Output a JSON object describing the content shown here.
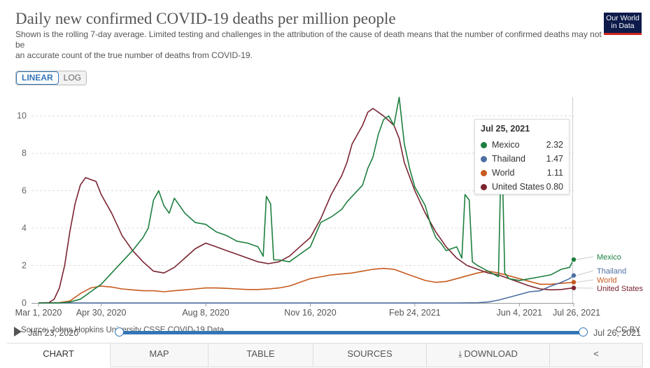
{
  "title": "Daily new confirmed COVID-19 deaths per million people",
  "subtitle_line1": "Shown is the rolling 7-day average. Limited testing and challenges in the attribution of the cause of death means that the number of confirmed deaths may not be",
  "subtitle_line2": "an accurate count of the true number of deaths from COVID-19.",
  "logo": {
    "line1": "Our World",
    "line2": "in Data"
  },
  "scale": {
    "linear": "LINEAR",
    "log": "LOG"
  },
  "tooltip": {
    "date": "Jul 25, 2021",
    "rows": [
      {
        "name": "Mexico",
        "value": "2.32",
        "color": "#1d7f3e"
      },
      {
        "name": "Thailand",
        "value": "1.47",
        "color": "#4e6fa3"
      },
      {
        "name": "World",
        "value": "1.11",
        "color": "#c75a1d"
      },
      {
        "name": "United States",
        "value": "0.80",
        "color": "#7a2430"
      }
    ]
  },
  "timeline": {
    "source": "Source: Johns Hopkins University CSSE COVID-19 Data",
    "license": "CC BY",
    "start": "Jan 23, 2020",
    "end": "Jul 26, 2021"
  },
  "tabs": {
    "chart": "CHART",
    "map": "MAP",
    "table": "TABLE",
    "sources": "SOURCES",
    "download": "DOWNLOAD",
    "share_icon": "share-icon",
    "download_icon": "download-icon"
  },
  "chart_data": {
    "type": "line",
    "title": "Daily new confirmed COVID-19 deaths per million people",
    "xlabel": "",
    "ylabel": "",
    "x_range_days": [
      0,
      512
    ],
    "ylim": [
      0,
      11
    ],
    "yticks": [
      0,
      2,
      4,
      6,
      8,
      10
    ],
    "xticks": [
      {
        "day": 0,
        "label": "Mar 1, 2020"
      },
      {
        "day": 60,
        "label": "Apr 30, 2020"
      },
      {
        "day": 160,
        "label": "Aug 8, 2020"
      },
      {
        "day": 260,
        "label": "Nov 16, 2020"
      },
      {
        "day": 360,
        "label": "Feb 24, 2021"
      },
      {
        "day": 460,
        "label": "Jun 4, 2021"
      },
      {
        "day": 512,
        "label": "Jul 26, 2021"
      }
    ],
    "grid": true,
    "series": [
      {
        "name": "Mexico",
        "color": "#1d7f3e",
        "points": [
          [
            0,
            0
          ],
          [
            20,
            0
          ],
          [
            30,
            0.05
          ],
          [
            40,
            0.2
          ],
          [
            50,
            0.6
          ],
          [
            60,
            1.0
          ],
          [
            70,
            1.6
          ],
          [
            80,
            2.2
          ],
          [
            90,
            2.8
          ],
          [
            100,
            3.5
          ],
          [
            105,
            4.0
          ],
          [
            110,
            5.5
          ],
          [
            115,
            6.0
          ],
          [
            120,
            5.2
          ],
          [
            125,
            4.8
          ],
          [
            130,
            5.6
          ],
          [
            140,
            4.8
          ],
          [
            150,
            4.3
          ],
          [
            160,
            4.2
          ],
          [
            170,
            3.8
          ],
          [
            180,
            3.6
          ],
          [
            190,
            3.3
          ],
          [
            200,
            3.2
          ],
          [
            210,
            3.0
          ],
          [
            215,
            2.5
          ],
          [
            218,
            5.7
          ],
          [
            222,
            5.3
          ],
          [
            225,
            2.3
          ],
          [
            230,
            2.3
          ],
          [
            240,
            2.2
          ],
          [
            250,
            2.6
          ],
          [
            260,
            3.0
          ],
          [
            270,
            4.3
          ],
          [
            280,
            4.6
          ],
          [
            290,
            5.0
          ],
          [
            295,
            5.4
          ],
          [
            300,
            5.7
          ],
          [
            310,
            6.3
          ],
          [
            315,
            7.2
          ],
          [
            320,
            7.8
          ],
          [
            325,
            9.0
          ],
          [
            330,
            9.8
          ],
          [
            335,
            10.0
          ],
          [
            340,
            9.5
          ],
          [
            345,
            11.0
          ],
          [
            350,
            8.5
          ],
          [
            355,
            7.2
          ],
          [
            360,
            6.2
          ],
          [
            370,
            5.2
          ],
          [
            375,
            4.2
          ],
          [
            380,
            3.5
          ],
          [
            385,
            3.2
          ],
          [
            390,
            2.8
          ],
          [
            400,
            3.0
          ],
          [
            405,
            2.4
          ],
          [
            408,
            5.8
          ],
          [
            412,
            5.5
          ],
          [
            415,
            2.2
          ],
          [
            420,
            2.0
          ],
          [
            430,
            1.7
          ],
          [
            440,
            1.4
          ],
          [
            443,
            9.0
          ],
          [
            446,
            1.6
          ],
          [
            450,
            1.3
          ],
          [
            460,
            1.2
          ],
          [
            470,
            1.3
          ],
          [
            480,
            1.4
          ],
          [
            490,
            1.5
          ],
          [
            500,
            1.8
          ],
          [
            508,
            1.9
          ],
          [
            512,
            2.32
          ]
        ]
      },
      {
        "name": "Thailand",
        "color": "#4e6fa3",
        "points": [
          [
            0,
            0
          ],
          [
            400,
            0
          ],
          [
            420,
            0.01
          ],
          [
            430,
            0.05
          ],
          [
            440,
            0.15
          ],
          [
            450,
            0.3
          ],
          [
            460,
            0.45
          ],
          [
            470,
            0.6
          ],
          [
            480,
            0.65
          ],
          [
            490,
            0.9
          ],
          [
            500,
            1.1
          ],
          [
            508,
            1.3
          ],
          [
            512,
            1.47
          ]
        ]
      },
      {
        "name": "World",
        "color": "#c75a1d",
        "points": [
          [
            0,
            0
          ],
          [
            20,
            0.02
          ],
          [
            30,
            0.1
          ],
          [
            40,
            0.5
          ],
          [
            50,
            0.8
          ],
          [
            60,
            0.9
          ],
          [
            70,
            0.85
          ],
          [
            80,
            0.75
          ],
          [
            90,
            0.7
          ],
          [
            100,
            0.65
          ],
          [
            110,
            0.65
          ],
          [
            120,
            0.6
          ],
          [
            130,
            0.65
          ],
          [
            140,
            0.7
          ],
          [
            150,
            0.75
          ],
          [
            160,
            0.8
          ],
          [
            170,
            0.8
          ],
          [
            180,
            0.78
          ],
          [
            190,
            0.75
          ],
          [
            200,
            0.72
          ],
          [
            210,
            0.72
          ],
          [
            220,
            0.75
          ],
          [
            230,
            0.8
          ],
          [
            240,
            0.9
          ],
          [
            250,
            1.1
          ],
          [
            260,
            1.3
          ],
          [
            270,
            1.4
          ],
          [
            280,
            1.5
          ],
          [
            290,
            1.55
          ],
          [
            300,
            1.6
          ],
          [
            310,
            1.7
          ],
          [
            320,
            1.8
          ],
          [
            330,
            1.85
          ],
          [
            340,
            1.8
          ],
          [
            350,
            1.6
          ],
          [
            360,
            1.4
          ],
          [
            370,
            1.2
          ],
          [
            380,
            1.1
          ],
          [
            390,
            1.15
          ],
          [
            400,
            1.3
          ],
          [
            410,
            1.45
          ],
          [
            420,
            1.6
          ],
          [
            430,
            1.7
          ],
          [
            440,
            1.6
          ],
          [
            450,
            1.45
          ],
          [
            460,
            1.3
          ],
          [
            470,
            1.15
          ],
          [
            480,
            1.0
          ],
          [
            490,
            1.0
          ],
          [
            500,
            1.05
          ],
          [
            508,
            1.08
          ],
          [
            512,
            1.11
          ]
        ]
      },
      {
        "name": "United States",
        "color": "#7a2430",
        "points": [
          [
            0,
            0
          ],
          [
            10,
            0.02
          ],
          [
            15,
            0.2
          ],
          [
            20,
            0.8
          ],
          [
            25,
            2.0
          ],
          [
            30,
            3.8
          ],
          [
            35,
            5.3
          ],
          [
            40,
            6.3
          ],
          [
            45,
            6.7
          ],
          [
            50,
            6.6
          ],
          [
            55,
            6.5
          ],
          [
            60,
            5.8
          ],
          [
            70,
            4.8
          ],
          [
            80,
            3.6
          ],
          [
            90,
            2.8
          ],
          [
            100,
            2.2
          ],
          [
            110,
            1.7
          ],
          [
            120,
            1.6
          ],
          [
            130,
            1.9
          ],
          [
            140,
            2.4
          ],
          [
            150,
            2.9
          ],
          [
            160,
            3.2
          ],
          [
            170,
            3.0
          ],
          [
            180,
            2.8
          ],
          [
            190,
            2.6
          ],
          [
            200,
            2.4
          ],
          [
            210,
            2.2
          ],
          [
            220,
            2.1
          ],
          [
            230,
            2.2
          ],
          [
            240,
            2.5
          ],
          [
            250,
            3.0
          ],
          [
            260,
            3.5
          ],
          [
            270,
            4.5
          ],
          [
            280,
            5.8
          ],
          [
            290,
            6.8
          ],
          [
            295,
            7.5
          ],
          [
            300,
            8.5
          ],
          [
            310,
            9.5
          ],
          [
            315,
            10.2
          ],
          [
            320,
            10.4
          ],
          [
            330,
            10.0
          ],
          [
            340,
            9.5
          ],
          [
            345,
            8.8
          ],
          [
            350,
            7.5
          ],
          [
            360,
            6.0
          ],
          [
            370,
            4.8
          ],
          [
            380,
            3.8
          ],
          [
            390,
            3.0
          ],
          [
            400,
            2.4
          ],
          [
            410,
            2.0
          ],
          [
            420,
            1.8
          ],
          [
            430,
            1.6
          ],
          [
            440,
            1.5
          ],
          [
            450,
            1.3
          ],
          [
            460,
            1.1
          ],
          [
            470,
            0.9
          ],
          [
            480,
            0.75
          ],
          [
            490,
            0.7
          ],
          [
            500,
            0.72
          ],
          [
            508,
            0.78
          ],
          [
            512,
            0.8
          ]
        ]
      }
    ],
    "end_labels": [
      "Mexico",
      "Thailand",
      "World",
      "United States"
    ]
  }
}
